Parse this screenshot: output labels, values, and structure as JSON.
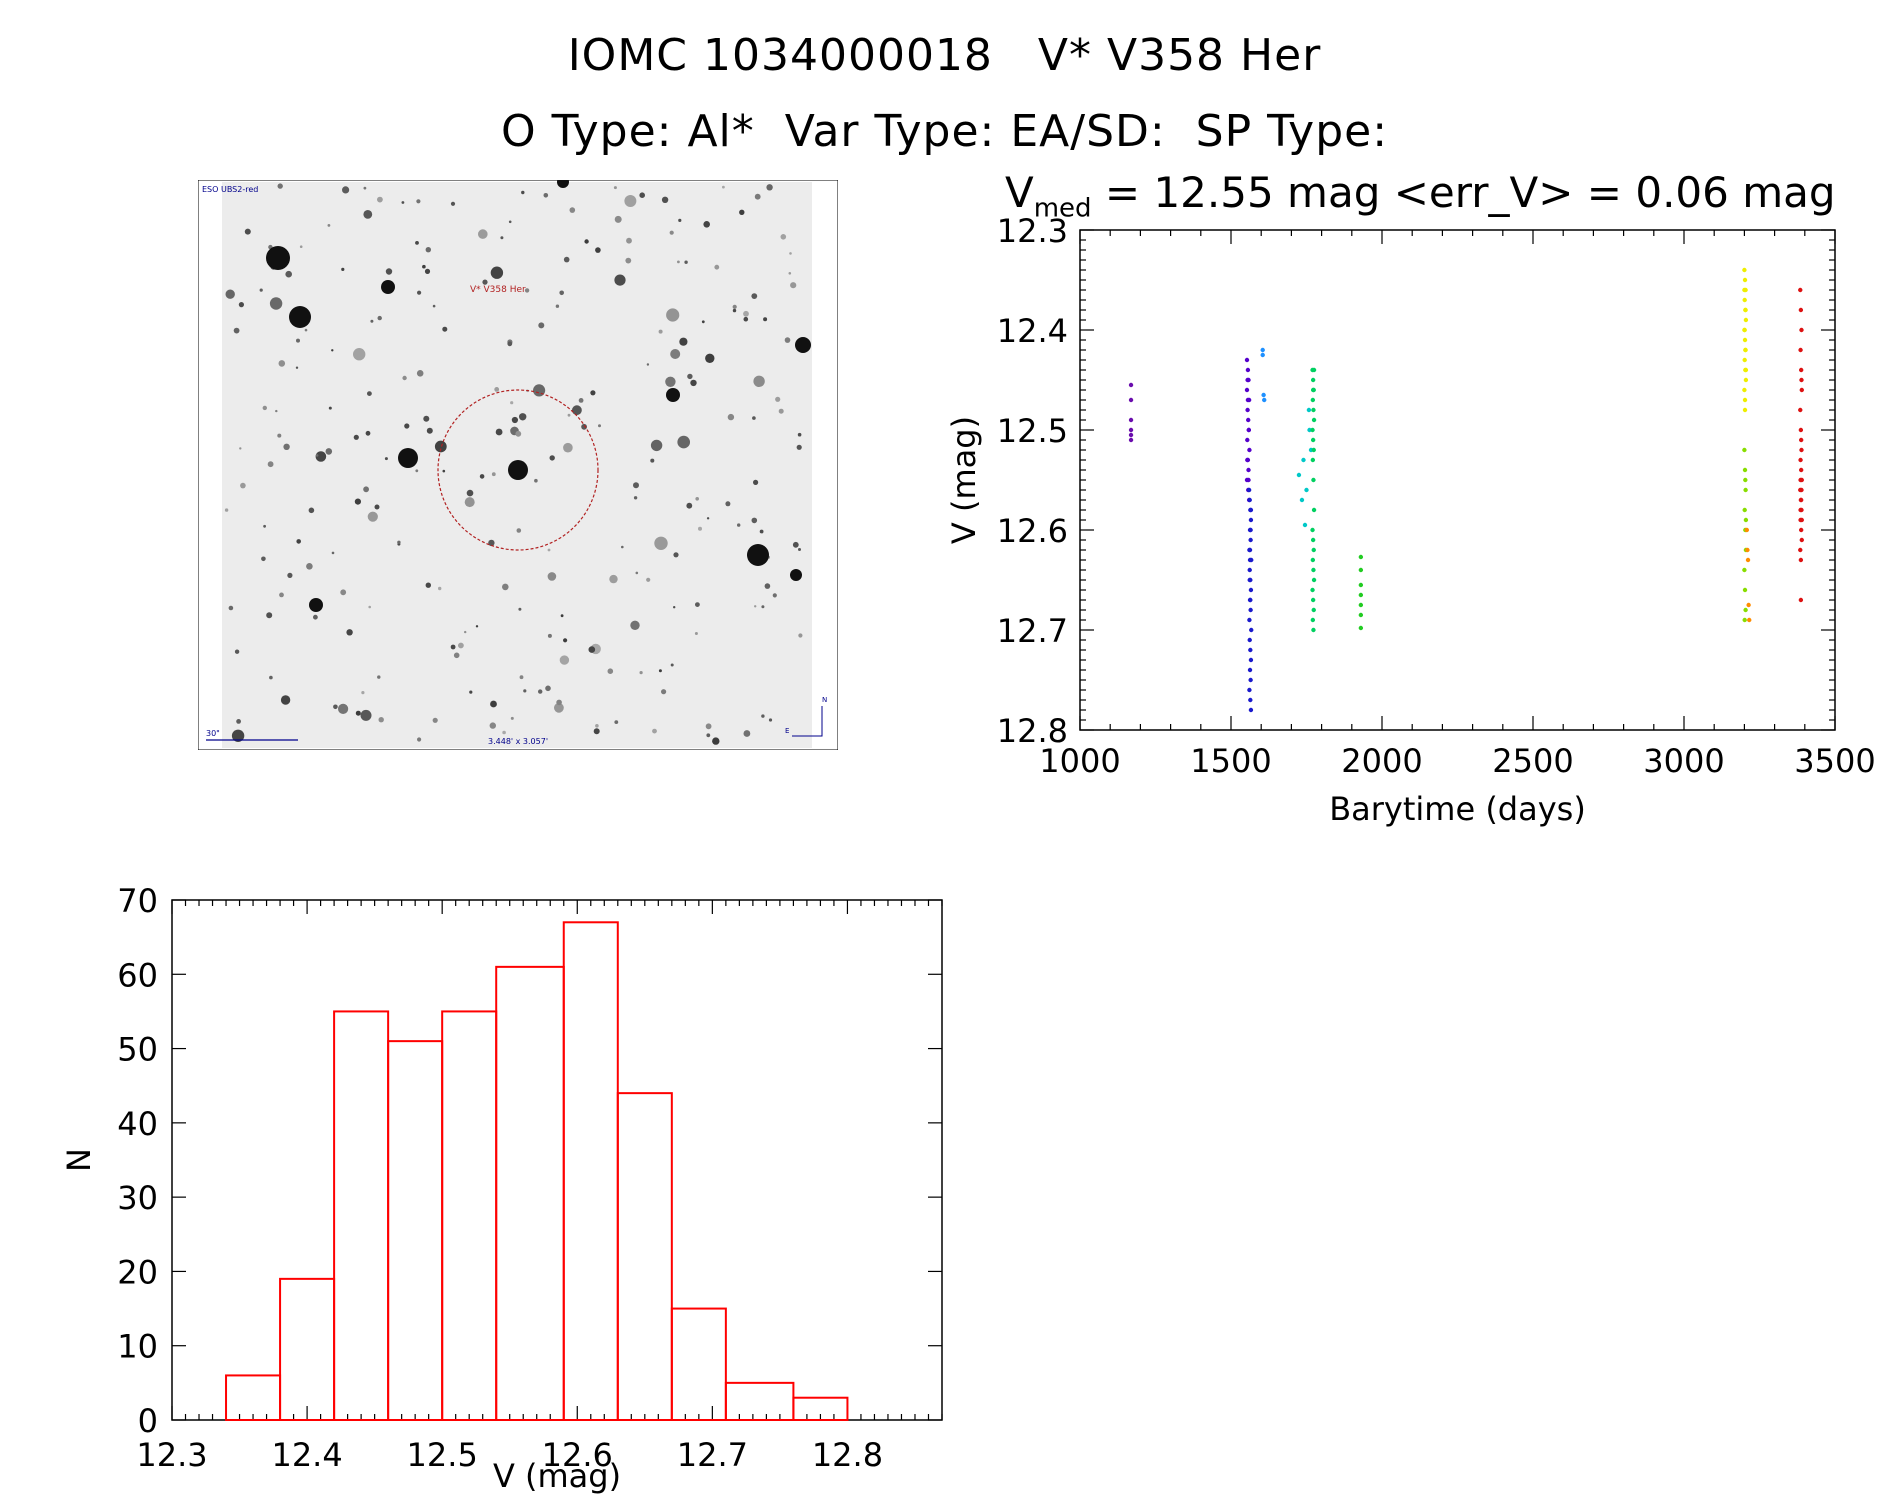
{
  "header": {
    "title_line1": "IOMC 1034000018   V* V358 Her",
    "title_line2": "O Type: Al*  Var Type: EA/SD:  SP Type:",
    "vmed_symbol": "V",
    "vmed_sub": "med",
    "stat_text": " = 12.55 mag <err_V> = 0.06 mag"
  },
  "sky_image": {
    "survey_label": "ESO UBS2-red",
    "target_label": "V* V358 Her",
    "scale_label": "30\"",
    "fov_label": "3.448' x 3.057'",
    "north_label": "N",
    "east_label": "E",
    "target_circle_color": "#b22222",
    "label_color": "#00008b"
  },
  "chart_data": [
    {
      "type": "scatter",
      "xlabel": "Barytime (days)",
      "ylabel": "V (mag)",
      "xlim": [
        1000,
        3500
      ],
      "ylim": [
        12.8,
        12.3
      ],
      "y_inverted": true,
      "xticks": [
        1000,
        1500,
        2000,
        2500,
        3000,
        3500
      ],
      "yticks": [
        12.3,
        12.4,
        12.5,
        12.6,
        12.7,
        12.8
      ],
      "ytick_labels": [
        "12.3",
        "12.4",
        "12.5",
        "12.6",
        "12.7",
        "12.8"
      ],
      "series": [
        {
          "color": "#6a0dad",
          "x": [
            1169,
            1169,
            1169,
            1169,
            1169,
            1169
          ],
          "y": [
            12.455,
            12.47,
            12.49,
            12.5,
            12.505,
            12.51
          ]
        },
        {
          "color": "#5500cc",
          "x": [
            1553,
            1556,
            1558,
            1553,
            1560,
            1555,
            1557,
            1559,
            1554,
            1561,
            1556,
            1558,
            1553,
            1557,
            1560,
            1555,
            1559,
            1554,
            1556,
            1558
          ],
          "y": [
            12.43,
            12.44,
            12.45,
            12.46,
            12.47,
            12.48,
            12.49,
            12.5,
            12.51,
            12.52,
            12.53,
            12.54,
            12.55,
            12.56,
            12.57,
            12.45,
            12.5,
            12.53,
            12.47,
            12.55
          ]
        },
        {
          "color": "#1a1acc",
          "x": [
            1560,
            1562,
            1564,
            1566,
            1563,
            1565,
            1561,
            1567,
            1562,
            1564,
            1566,
            1563,
            1565,
            1561,
            1567,
            1562,
            1564,
            1566,
            1563,
            1565,
            1561,
            1564,
            1566,
            1563,
            1562,
            1565,
            1564,
            1566,
            1563
          ],
          "y": [
            12.56,
            12.57,
            12.58,
            12.59,
            12.6,
            12.61,
            12.62,
            12.63,
            12.64,
            12.65,
            12.66,
            12.67,
            12.68,
            12.69,
            12.7,
            12.71,
            12.72,
            12.73,
            12.74,
            12.75,
            12.76,
            12.77,
            12.78,
            12.62,
            12.65,
            12.6,
            12.67,
            12.58,
            12.63
          ]
        },
        {
          "color": "#1e90ff",
          "x": [
            1605,
            1605,
            1610,
            1608
          ],
          "y": [
            12.42,
            12.425,
            12.47,
            12.465
          ]
        },
        {
          "color": "#00c8c8",
          "x": [
            1725,
            1735,
            1745,
            1760,
            1765,
            1758,
            1740,
            1750
          ],
          "y": [
            12.545,
            12.57,
            12.595,
            12.5,
            12.52,
            12.48,
            12.53,
            12.56
          ]
        },
        {
          "color": "#00d060",
          "x": [
            1770,
            1772,
            1774,
            1771,
            1773,
            1775,
            1770,
            1772,
            1774,
            1771,
            1773,
            1775,
            1770,
            1772,
            1774,
            1771,
            1773,
            1775,
            1770,
            1772,
            1774,
            1771,
            1773,
            1775,
            1772
          ],
          "y": [
            12.44,
            12.45,
            12.46,
            12.47,
            12.48,
            12.49,
            12.5,
            12.51,
            12.52,
            12.53,
            12.55,
            12.58,
            12.6,
            12.61,
            12.62,
            12.63,
            12.64,
            12.65,
            12.66,
            12.67,
            12.68,
            12.69,
            12.7,
            12.44,
            12.46
          ]
        },
        {
          "color": "#22cc22",
          "x": [
            1930,
            1930,
            1930,
            1930,
            1930,
            1930,
            1930
          ],
          "y": [
            12.627,
            12.64,
            12.655,
            12.665,
            12.675,
            12.685,
            12.698
          ]
        },
        {
          "color": "#eeee00",
          "x": [
            3200,
            3202,
            3204,
            3201,
            3203,
            3205,
            3200,
            3202,
            3204,
            3201,
            3203,
            3205,
            3200,
            3202,
            3204,
            3201,
            3203,
            3205,
            3200,
            3202
          ],
          "y": [
            12.34,
            12.35,
            12.36,
            12.37,
            12.38,
            12.39,
            12.4,
            12.41,
            12.42,
            12.43,
            12.44,
            12.45,
            12.46,
            12.47,
            12.38,
            12.4,
            12.42,
            12.44,
            12.36,
            12.48
          ]
        },
        {
          "color": "#88dd00",
          "x": [
            3200,
            3202,
            3204,
            3201,
            3203,
            3205,
            3200,
            3202,
            3204,
            3201,
            3203,
            3205
          ],
          "y": [
            12.52,
            12.54,
            12.56,
            12.58,
            12.6,
            12.62,
            12.64,
            12.66,
            12.68,
            12.69,
            12.55,
            12.59
          ]
        },
        {
          "color": "#ff8c00",
          "x": [
            3208,
            3210,
            3212,
            3214,
            3216
          ],
          "y": [
            12.6,
            12.62,
            12.63,
            12.675,
            12.69
          ]
        },
        {
          "color": "#dd1111",
          "x": [
            3385,
            3387,
            3389,
            3386,
            3388,
            3390,
            3385,
            3387,
            3389,
            3386,
            3388,
            3390,
            3385,
            3387,
            3389,
            3386,
            3388,
            3390,
            3385,
            3387,
            3389,
            3386,
            3388,
            3390,
            3387,
            3388,
            3386,
            3389
          ],
          "y": [
            12.36,
            12.38,
            12.4,
            12.42,
            12.44,
            12.46,
            12.48,
            12.5,
            12.52,
            12.53,
            12.54,
            12.55,
            12.56,
            12.57,
            12.58,
            12.59,
            12.6,
            12.61,
            12.62,
            12.63,
            12.45,
            12.55,
            12.57,
            12.59,
            12.67,
            12.51,
            12.58,
            12.56
          ]
        }
      ]
    },
    {
      "type": "bar",
      "style": "histogram-outline",
      "color": "#ff0000",
      "xlabel": "V (mag)",
      "ylabel": "N",
      "xlim": [
        12.3,
        12.87
      ],
      "ylim": [
        0,
        70
      ],
      "xticks": [
        12.3,
        12.4,
        12.5,
        12.6,
        12.7,
        12.8
      ],
      "xtick_labels": [
        "12.3",
        "12.4",
        "12.5",
        "12.6",
        "12.7",
        "12.8"
      ],
      "yticks": [
        0,
        10,
        20,
        30,
        40,
        50,
        60,
        70
      ],
      "bin_edges": [
        12.34,
        12.38,
        12.42,
        12.46,
        12.5,
        12.54,
        12.59,
        12.63,
        12.67,
        12.71,
        12.76,
        12.8
      ],
      "values": [
        6,
        19,
        55,
        51,
        55,
        61,
        67,
        44,
        15,
        5,
        3
      ]
    }
  ]
}
